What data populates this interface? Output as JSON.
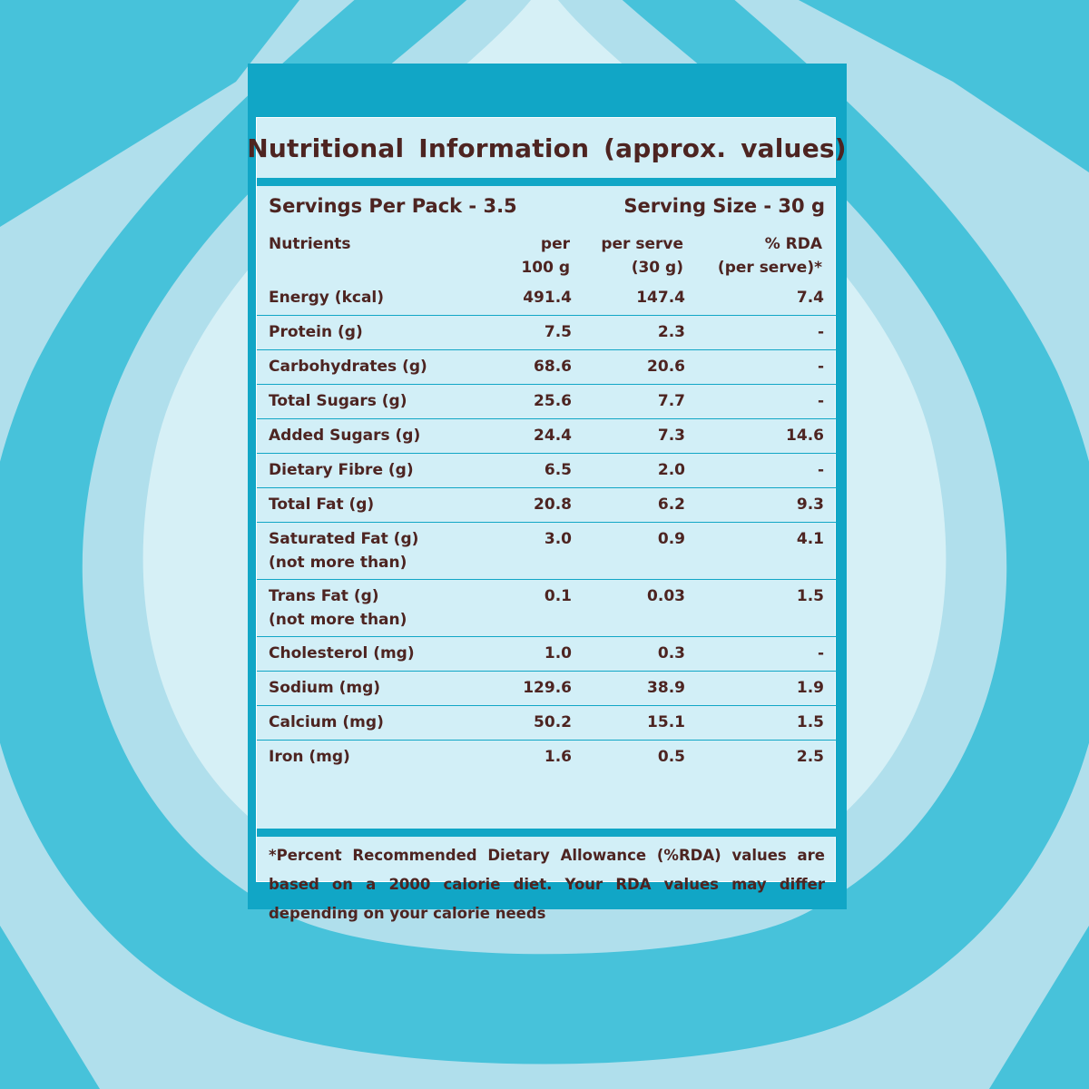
{
  "title": "Nutritional Information (approx. values)",
  "servings_per_pack": "Servings Per Pack - 3.5",
  "serving_size": "Serving Size - 30 g",
  "columns": {
    "nutrients": "Nutrients",
    "per100_line1": "per",
    "per100_line2": "100 g",
    "perserve_line1": "per serve",
    "perserve_line2": "(30 g)",
    "rda_line1": "% RDA",
    "rda_line2": "(per serve)*"
  },
  "rows": [
    {
      "name": [
        "Energy (kcal)"
      ],
      "per100": "491.4",
      "per_serve": "147.4",
      "rda": "7.4"
    },
    {
      "name": [
        "Protein (g)"
      ],
      "per100": "7.5",
      "per_serve": "2.3",
      "rda": "-"
    },
    {
      "name": [
        "Carbohydrates (g)"
      ],
      "per100": "68.6",
      "per_serve": "20.6",
      "rda": "-"
    },
    {
      "name": [
        "Total Sugars (g)"
      ],
      "per100": "25.6",
      "per_serve": "7.7",
      "rda": "-"
    },
    {
      "name": [
        "Added Sugars (g)"
      ],
      "per100": "24.4",
      "per_serve": "7.3",
      "rda": "14.6"
    },
    {
      "name": [
        "Dietary Fibre (g)"
      ],
      "per100": "6.5",
      "per_serve": "2.0",
      "rda": "-"
    },
    {
      "name": [
        "Total Fat (g)"
      ],
      "per100": "20.8",
      "per_serve": "6.2",
      "rda": "9.3"
    },
    {
      "name": [
        "Saturated Fat (g)",
        "(not more than)"
      ],
      "per100": "3.0",
      "per_serve": "0.9",
      "rda": "4.1"
    },
    {
      "name": [
        "Trans Fat (g)",
        "(not more than)"
      ],
      "per100": "0.1",
      "per_serve": "0.03",
      "rda": "1.5"
    },
    {
      "name": [
        "Cholesterol (mg)"
      ],
      "per100": "1.0",
      "per_serve": "0.3",
      "rda": "-"
    },
    {
      "name": [
        "Sodium (mg)"
      ],
      "per100": "129.6",
      "per_serve": "38.9",
      "rda": "1.9"
    },
    {
      "name": [
        "Calcium (mg)"
      ],
      "per100": "50.2",
      "per_serve": "15.1",
      "rda": "1.5"
    },
    {
      "name": [
        "Iron (mg)"
      ],
      "per100": "1.6",
      "per_serve": "0.5",
      "rda": "2.5"
    }
  ],
  "footnote": "*Percent Recommended Dietary Allowance (%RDA) values are based on a 2000 calorie diet. Your RDA values may differ depending on your calorie needs",
  "colors": {
    "panel_blue": "#11a6c6",
    "panel_fill": "#d2eff7",
    "text_brown": "#4d2421",
    "ring_dark": "#47c2da",
    "ring_light": "#b0dfec",
    "ring_center": "#d6f0f6"
  }
}
